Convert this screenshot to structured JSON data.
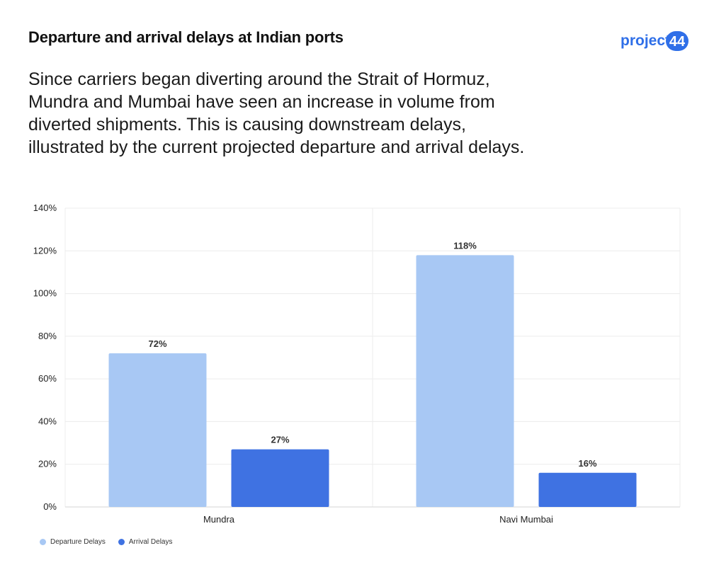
{
  "header": {
    "title": "Departure and arrival delays at Indian ports",
    "subtitle_lines": [
      "Since carriers began diverting around the Strait of Hormuz,",
      "Mundra and Mumbai have seen an increase in volume from",
      "diverted shipments. This is causing downstream delays,",
      "illustrated by the current projected departure and arrival delays."
    ]
  },
  "logo": {
    "text": "project",
    "badge": "44",
    "color": "#2f6fe8"
  },
  "chart_data": {
    "type": "bar",
    "categories": [
      "Mundra",
      "Navi Mumbai"
    ],
    "series": [
      {
        "name": "Departure Delays",
        "values": [
          72,
          118
        ],
        "labels": [
          "72%",
          "118%"
        ],
        "color": "#a8c8f4"
      },
      {
        "name": "Arrival Delays",
        "values": [
          27,
          16
        ],
        "labels": [
          "27%",
          "16%"
        ],
        "color": "#3f72e2"
      }
    ],
    "ylim": [
      0,
      140
    ],
    "yticks": [
      0,
      20,
      40,
      60,
      80,
      100,
      120,
      140
    ],
    "ytick_labels": [
      "0%",
      "20%",
      "40%",
      "60%",
      "80%",
      "100%",
      "120%",
      "140%"
    ],
    "grid": true,
    "legend_position": "bottom-left"
  }
}
